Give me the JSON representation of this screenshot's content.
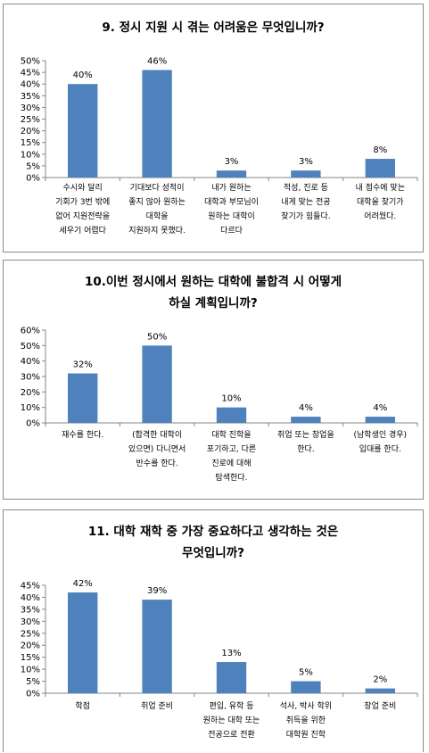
{
  "chart_data": [
    {
      "type": "bar",
      "title_lines": [
        "9. 정시 지원 시 겪는 어려움은 무엇입니까?"
      ],
      "categories": [
        [
          "수시와 달리",
          "기회가 3번 밖에",
          "없어 지원전략을",
          "세우기 어렵다"
        ],
        [
          "기대보다 성적이",
          "좋지 않아 원하는",
          "대학을",
          "지원하지 못했다."
        ],
        [
          "내가 원하는",
          "대학과 부모님이",
          "원하는 대학이",
          "다르다"
        ],
        [
          "적성, 진로 등",
          "내게 맞는 전공",
          "찾기가 힘들다."
        ],
        [
          "내 점수에 맞는",
          "대학을 찾기가",
          "어려웠다."
        ]
      ],
      "values": [
        40,
        46,
        3,
        3,
        8
      ],
      "data_labels": [
        "40%",
        "46%",
        "3%",
        "3%",
        "8%"
      ],
      "yticks": [
        "0%",
        "5%",
        "10%",
        "15%",
        "20%",
        "25%",
        "30%",
        "35%",
        "40%",
        "45%",
        "50%"
      ],
      "ylim": [
        0,
        50
      ],
      "color": "#4f81bd",
      "grid": false,
      "legend": "none"
    },
    {
      "type": "bar",
      "title_lines": [
        "10.이번 정시에서 원하는 대학에 불합격 시 어떻게",
        "하실 계획입니까?"
      ],
      "categories": [
        [
          "재수를 한다."
        ],
        [
          "(합격한 대학이",
          "있으면) 다니면서",
          "반수를 한다."
        ],
        [
          "대학 진학을",
          "포기하고, 다른",
          "진로에 대해",
          "탐색한다."
        ],
        [
          "취업 또는 창업을",
          "한다."
        ],
        [
          "(남학생인 경우)",
          "입대를 한다."
        ]
      ],
      "values": [
        32,
        50,
        10,
        4,
        4
      ],
      "data_labels": [
        "32%",
        "50%",
        "10%",
        "4%",
        "4%"
      ],
      "yticks": [
        "0%",
        "10%",
        "20%",
        "30%",
        "40%",
        "50%",
        "60%"
      ],
      "ylim": [
        0,
        60
      ],
      "color": "#4f81bd",
      "grid": false,
      "legend": "none"
    },
    {
      "type": "bar",
      "title_lines": [
        "11. 대학 재학 중 가장 중요하다고 생각하는 것은",
        "무엇입니까?"
      ],
      "categories": [
        [
          "학점"
        ],
        [
          "취업 준비"
        ],
        [
          "편입, 유학 등",
          "원하는 대학 또는",
          "전공으로 전환"
        ],
        [
          "석사, 박사 학위",
          "취득을 위한",
          "대학원 진학"
        ],
        [
          "창업 준비"
        ]
      ],
      "values": [
        42,
        39,
        13,
        5,
        2
      ],
      "data_labels": [
        "42%",
        "39%",
        "13%",
        "5%",
        "2%"
      ],
      "yticks": [
        "0%",
        "5%",
        "10%",
        "15%",
        "20%",
        "25%",
        "30%",
        "35%",
        "40%",
        "45%"
      ],
      "ylim": [
        0,
        45
      ],
      "color": "#4f81bd",
      "grid": false,
      "legend": "none"
    }
  ]
}
